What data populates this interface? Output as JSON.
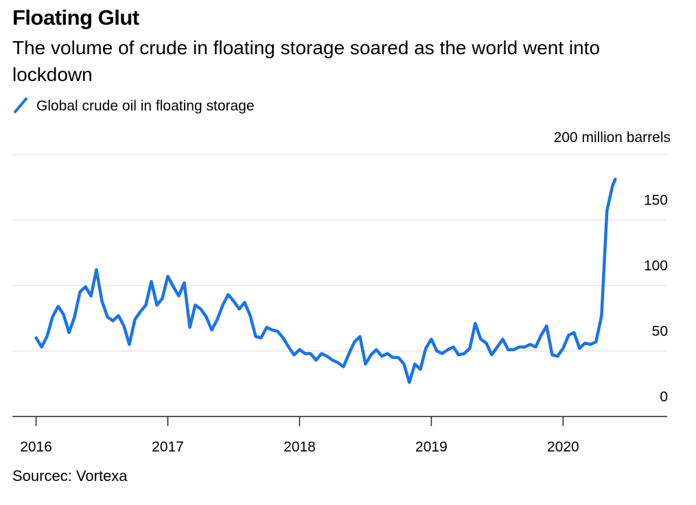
{
  "chart_data": {
    "type": "line",
    "title": "Floating Glut",
    "subtitle": "The volume of crude in floating storage soared as the world went into lockdown",
    "source": "Sourcec: Vortexa",
    "x": [
      2016,
      2016.042,
      2016.083,
      2016.125,
      2016.167,
      2016.208,
      2016.25,
      2016.292,
      2016.333,
      2016.375,
      2016.417,
      2016.458,
      2016.5,
      2016.542,
      2016.583,
      2016.625,
      2016.667,
      2016.708,
      2016.75,
      2016.792,
      2016.833,
      2016.875,
      2016.917,
      2016.958,
      2017,
      2017.042,
      2017.083,
      2017.125,
      2017.167,
      2017.208,
      2017.25,
      2017.292,
      2017.333,
      2017.375,
      2017.417,
      2017.458,
      2017.5,
      2017.542,
      2017.583,
      2017.625,
      2017.667,
      2017.708,
      2017.75,
      2017.792,
      2017.833,
      2017.875,
      2017.917,
      2017.958,
      2018,
      2018.042,
      2018.083,
      2018.125,
      2018.167,
      2018.208,
      2018.25,
      2018.292,
      2018.333,
      2018.375,
      2018.417,
      2018.458,
      2018.5,
      2018.542,
      2018.583,
      2018.625,
      2018.667,
      2018.708,
      2018.75,
      2018.792,
      2018.833,
      2018.875,
      2018.917,
      2018.958,
      2019,
      2019.042,
      2019.083,
      2019.125,
      2019.167,
      2019.208,
      2019.25,
      2019.292,
      2019.333,
      2019.375,
      2019.417,
      2019.458,
      2019.5,
      2019.542,
      2019.583,
      2019.625,
      2019.667,
      2019.708,
      2019.75,
      2019.792,
      2019.833,
      2019.875,
      2019.917,
      2019.958,
      2020,
      2020.042,
      2020.083,
      2020.125,
      2020.167,
      2020.208,
      2020.25,
      2020.292,
      2020.333,
      2020.375,
      2020.396
    ],
    "series": [
      {
        "name": "Global crude oil in floating storage",
        "color": "#1a73e8",
        "values": [
          60,
          53,
          61,
          76,
          84,
          78,
          64,
          76,
          95,
          99,
          92,
          112,
          88,
          76,
          73,
          77,
          69,
          55,
          74,
          80,
          85,
          103,
          85,
          90,
          107,
          99,
          92,
          102,
          68,
          85,
          82,
          76,
          66,
          74,
          85,
          93,
          88,
          82,
          87,
          77,
          61,
          60,
          68,
          66,
          65,
          60,
          53,
          47,
          51,
          48,
          48,
          43,
          48,
          46,
          43,
          41,
          38,
          48,
          57,
          61,
          40,
          47,
          51,
          46,
          48,
          45,
          45,
          40,
          26,
          40,
          36,
          52,
          59,
          50,
          48,
          51,
          53,
          47,
          48,
          52,
          71,
          59,
          56,
          47,
          53,
          59,
          51,
          51,
          53,
          53,
          55,
          53,
          62,
          69,
          47,
          46,
          52,
          62,
          64,
          52,
          56,
          55,
          57,
          77,
          157,
          176,
          181
        ]
      }
    ],
    "xlim": [
      2015.82,
      2020.79
    ],
    "xticks": [
      2016,
      2017,
      2018,
      2019,
      2020
    ],
    "ylim": [
      0,
      200
    ],
    "yticks": [
      0,
      50,
      100,
      150,
      {
        "value": 200,
        "label": "200 million barrels"
      }
    ],
    "grid": true
  }
}
